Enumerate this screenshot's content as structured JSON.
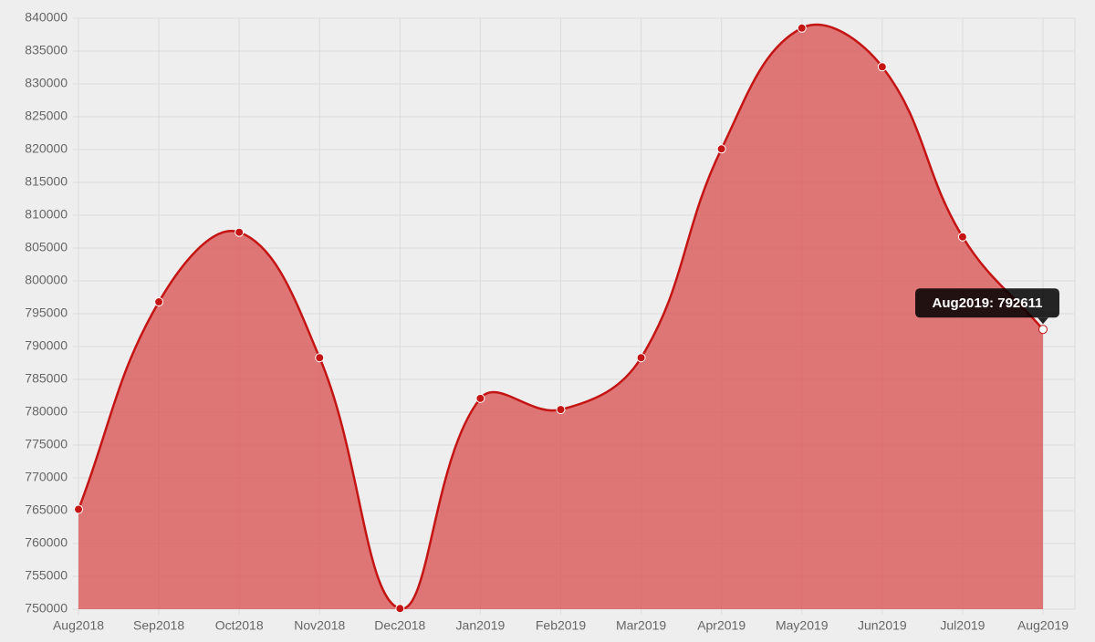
{
  "chart_data": {
    "type": "area",
    "categories": [
      "Aug2018",
      "Sep2018",
      "Oct2018",
      "Nov2018",
      "Dec2018",
      "Jan2019",
      "Feb2019",
      "Mar2019",
      "Apr2019",
      "May2019",
      "Jun2019",
      "Jul2019",
      "Aug2019"
    ],
    "series": [
      {
        "color": "#c41414",
        "fill": "rgba(218, 72, 72, 0.72)",
        "values": [
          765200,
          796800,
          807400,
          788300,
          750100,
          782100,
          780400,
          788300,
          820100,
          838500,
          832600,
          806700,
          792611
        ]
      }
    ],
    "ylim": [
      750000,
      840000
    ],
    "yticks": [
      750000,
      755000,
      760000,
      765000,
      770000,
      775000,
      780000,
      785000,
      790000,
      795000,
      800000,
      805000,
      810000,
      815000,
      820000,
      825000,
      830000,
      835000,
      840000
    ],
    "grid": true,
    "tooltip": {
      "text": "Aug2019: 792611",
      "index": 12
    }
  }
}
